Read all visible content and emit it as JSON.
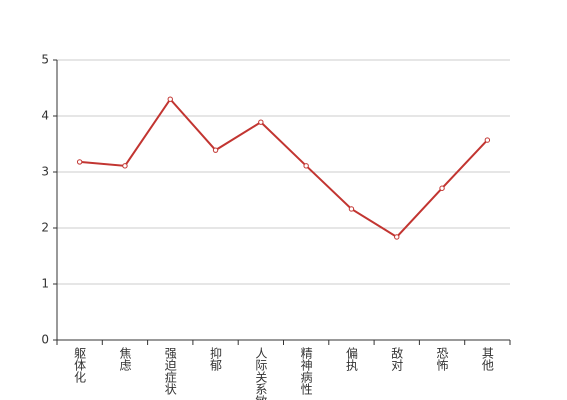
{
  "chart_data": {
    "type": "line",
    "categories": [
      "躯体化",
      "焦虑",
      "强迫症状",
      "抑郁",
      "人际关系敏感",
      "精神病性",
      "偏执",
      "敌对",
      "恐怖",
      "其他"
    ],
    "series": [
      {
        "color": "#c23531",
        "values": [
          3.18,
          3.11,
          4.3,
          3.39,
          3.89,
          3.11,
          2.34,
          1.84,
          2.71,
          3.57
        ]
      }
    ],
    "ylim": [
      0,
      5
    ],
    "yticks": [
      0,
      1,
      2,
      3,
      4,
      5
    ],
    "grid": true
  }
}
